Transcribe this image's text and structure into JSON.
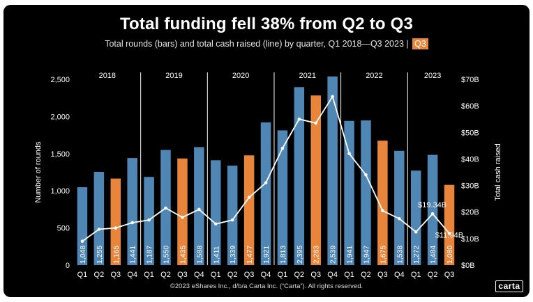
{
  "header": {
    "title": "Total funding fell 38% from Q2 to Q3",
    "subtitle": "Total rounds (bars) and total cash raised (line) by quarter, Q1 2018—Q3 2023",
    "subtitle_separator": "|",
    "highlight_badge": "Q3"
  },
  "footer": {
    "copyright": "©2023 eShares Inc., d/b/a Carta Inc. (“Carta”). All rights reserved.",
    "logo_text": "carta"
  },
  "colors": {
    "background": "#000000",
    "bar_default": "#4f86b3",
    "bar_highlight": "#e8853a",
    "line": "#ffffff",
    "divider": "#ffffff"
  },
  "chart_data": {
    "type": "bar",
    "title": "Total funding fell 38% from Q2 to Q3",
    "ylabel": "Number of rounds",
    "y2label": "Total cash raised",
    "ylim": [
      0,
      2500
    ],
    "y2lim": [
      0,
      70
    ],
    "yticks": [
      "0",
      "500",
      "1,000",
      "1,500",
      "2,000",
      "2,500"
    ],
    "y2ticks": [
      "$0B",
      "$10B",
      "$20B",
      "$30B",
      "$40B",
      "$50B",
      "$60B",
      "$70B"
    ],
    "years": [
      "2018",
      "2019",
      "2020",
      "2021",
      "2022",
      "2023"
    ],
    "categories": [
      "Q1",
      "Q2",
      "Q3",
      "Q4",
      "Q1",
      "Q2",
      "Q3",
      "Q4",
      "Q1",
      "Q2",
      "Q3",
      "Q4",
      "Q1",
      "Q2",
      "Q3",
      "Q4",
      "Q1",
      "Q2",
      "Q3",
      "Q4",
      "Q1",
      "Q2",
      "Q3"
    ],
    "highlight": [
      false,
      false,
      true,
      false,
      false,
      false,
      true,
      false,
      false,
      false,
      true,
      false,
      false,
      false,
      true,
      false,
      false,
      false,
      true,
      false,
      false,
      false,
      true
    ],
    "series": [
      {
        "name": "Total rounds",
        "kind": "bar",
        "values": [
          1048,
          1255,
          1165,
          1441,
          1187,
          1550,
          1435,
          1588,
          1411,
          1339,
          1477,
          1921,
          1813,
          2395,
          2283,
          2539,
          1941,
          1947,
          1675,
          1538,
          1272,
          1484,
          1080
        ],
        "labels": [
          "1,048",
          "1,255",
          "1,165",
          "1,441",
          "1,187",
          "1,550",
          "1,435",
          "1,588",
          "1,411",
          "1,339",
          "1,477",
          "1,921",
          "1,813",
          "2,395",
          "2,283",
          "2,539",
          "1,941",
          "1,947",
          "1,675",
          "1,538",
          "1,272",
          "1,484",
          "1,080"
        ]
      },
      {
        "name": "Total cash raised",
        "kind": "line",
        "unit": "$B",
        "values": [
          9.0,
          13.5,
          14.0,
          16.0,
          17.0,
          21.5,
          18.0,
          21.0,
          15.5,
          17.0,
          25.5,
          31.0,
          44.0,
          55.0,
          53.5,
          63.5,
          42.0,
          34.0,
          20.5,
          17.5,
          12.5,
          19.34,
          11.94
        ],
        "annotations": [
          {
            "index": 21,
            "text": "$19.34B"
          },
          {
            "index": 22,
            "text": "$11.94B"
          }
        ]
      }
    ]
  }
}
